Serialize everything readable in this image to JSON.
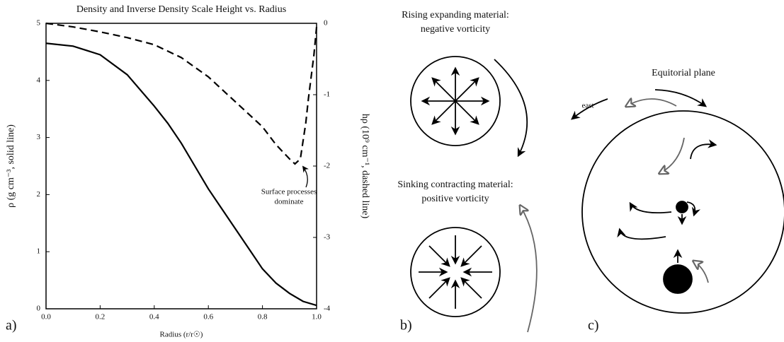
{
  "chart_data": {
    "type": "line",
    "title": "Density and Inverse Density Scale Height vs. Radius",
    "xlabel": "Radius (r/r☉)",
    "ylabel": "ρ (g cm⁻³, solid line)",
    "y2label": "hρ (10⁹ cm⁻¹, dashed line)",
    "annotation": [
      "Surface processes",
      "dominate"
    ],
    "panel_label": "a)",
    "xlim": [
      0,
      1
    ],
    "ylim": [
      0,
      5
    ],
    "y2lim": [
      -4,
      0
    ],
    "xticks": [
      {
        "value": 0,
        "label": "0.0"
      },
      {
        "value": 0.2,
        "label": "0.2"
      },
      {
        "value": 0.4,
        "label": "0.4"
      },
      {
        "value": 0.6,
        "label": "0.6"
      },
      {
        "value": 0.8,
        "label": "0.8"
      },
      {
        "value": 1,
        "label": "1.0"
      }
    ],
    "yticks": [
      0,
      1,
      2,
      3,
      4,
      5
    ],
    "y2ticks": [
      0,
      -1,
      -2,
      -3,
      -4
    ],
    "series": [
      {
        "color": "#000000",
        "line_style": "solid",
        "x": [
          0,
          0.1,
          0.2,
          0.3,
          0.4,
          0.45,
          0.5,
          0.55,
          0.6,
          0.65,
          0.7,
          0.75,
          0.8,
          0.85,
          0.9,
          0.95,
          1.0
        ],
        "values": [
          4.65,
          4.6,
          4.45,
          4.1,
          3.55,
          3.25,
          2.9,
          2.5,
          2.1,
          1.75,
          1.4,
          1.05,
          0.7,
          0.45,
          0.27,
          0.13,
          0.06
        ]
      },
      {
        "color": "#000000",
        "line_style": "dashed",
        "axis": "y2",
        "x": [
          0,
          0.1,
          0.2,
          0.3,
          0.4,
          0.5,
          0.6,
          0.7,
          0.8,
          0.85,
          0.9,
          0.92,
          0.94,
          0.96,
          0.97,
          0.98,
          0.99,
          1.0
        ],
        "values": [
          0,
          -0.05,
          -0.12,
          -0.2,
          -0.3,
          -0.48,
          -0.75,
          -1.1,
          -1.45,
          -1.7,
          -1.9,
          -1.97,
          -1.9,
          -1.4,
          -1.05,
          -0.75,
          -0.45,
          -0.05
        ]
      }
    ]
  },
  "panel_b": {
    "label": "b)",
    "top": [
      "Rising expanding material:",
      "negative vorticity"
    ],
    "bottom": [
      "Sinking contracting material:",
      "positive vorticity"
    ]
  },
  "panel_c": {
    "label": "c)",
    "title": "Equitorial plane",
    "east": "east"
  }
}
